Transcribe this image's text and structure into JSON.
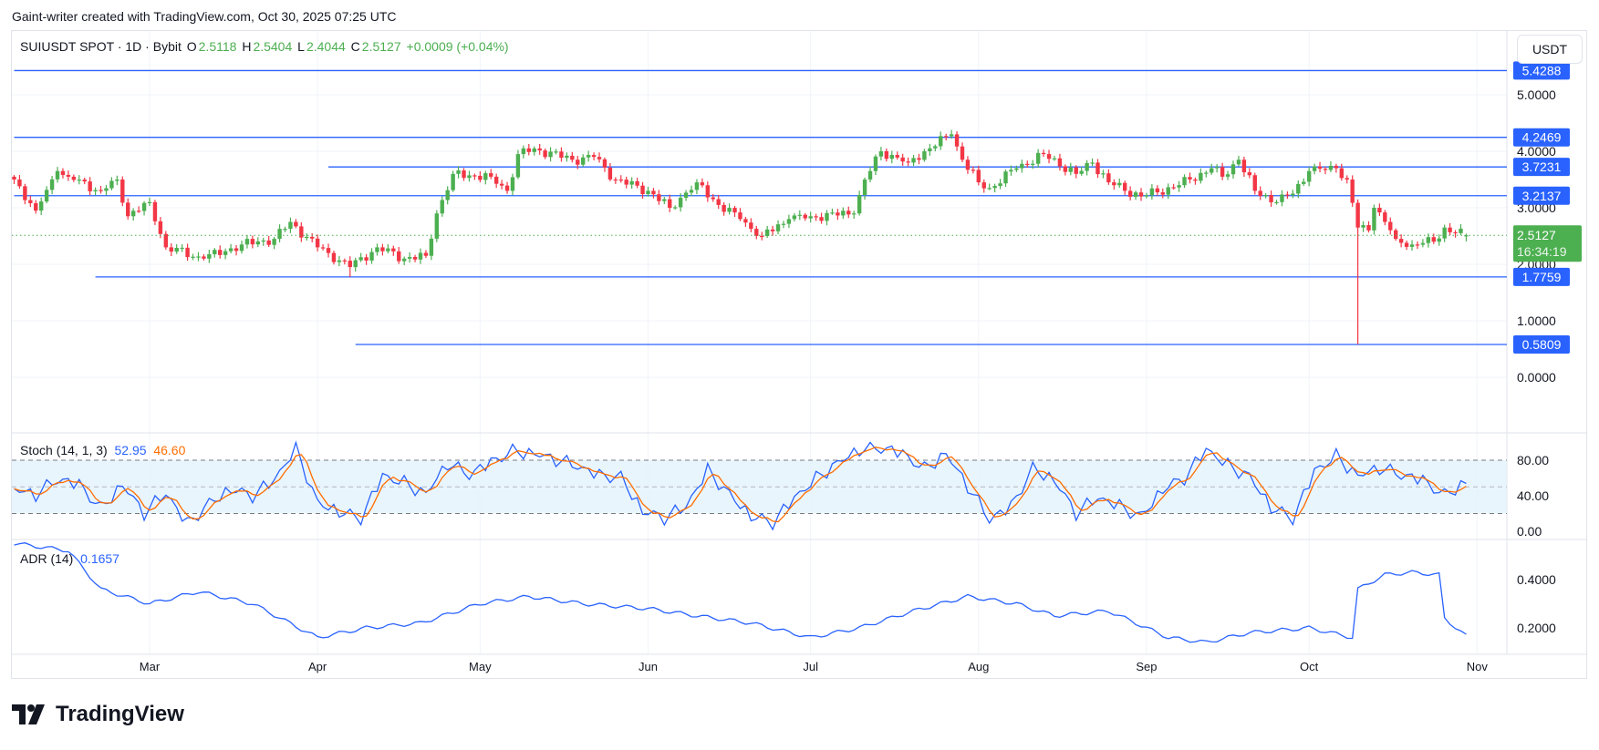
{
  "credit": "Gaint-writer created with TradingView.com, Oct 30, 2025 07:25 UTC",
  "legend": {
    "symbol": "SUIUSDT SPOT · 1D · Bybit",
    "o_label": "O",
    "o": "2.5118",
    "h_label": "H",
    "h": "2.5404",
    "l_label": "L",
    "l": "2.4044",
    "c_label": "C",
    "c": "2.5127",
    "change": "+0.0009 (+0.04%)"
  },
  "currency_button": "USDT",
  "logo_text": "TradingView",
  "colors": {
    "up": "#4caf50",
    "down": "#f23645",
    "line": "#2962ff",
    "stoch_k": "#2962ff",
    "stoch_d": "#ff6d00",
    "band": "#e3f2fd"
  },
  "chart_data": [
    {
      "type": "candlestick",
      "interval": "1D",
      "y_scale": "linear",
      "ylim": [
        0,
        5.6
      ],
      "y_ticks": [
        "5.0000",
        "4.0000",
        "3.0000",
        "2.0000",
        "1.0000",
        "0.0000"
      ],
      "x_ticks": [
        "Mar",
        "Apr",
        "May",
        "Jun",
        "Jul",
        "Aug",
        "Sep",
        "Oct",
        "Nov"
      ],
      "x_range": [
        "2025-02-04",
        "2025-10-30"
      ],
      "grid": true,
      "approx_closes": [
        [
          "2025-02-04",
          3.5
        ],
        [
          "2025-02-08",
          2.95
        ],
        [
          "2025-02-12",
          3.65
        ],
        [
          "2025-02-14",
          3.55
        ],
        [
          "2025-02-20",
          3.3
        ],
        [
          "2025-02-23",
          3.5
        ],
        [
          "2025-02-25",
          2.85
        ],
        [
          "2025-03-01",
          3.1
        ],
        [
          "2025-03-04",
          2.3
        ],
        [
          "2025-03-11",
          2.1
        ],
        [
          "2025-03-18",
          2.35
        ],
        [
          "2025-03-24",
          2.45
        ],
        [
          "2025-03-27",
          2.75
        ],
        [
          "2025-04-01",
          2.3
        ],
        [
          "2025-04-03",
          2.2
        ],
        [
          "2025-04-07",
          1.95
        ],
        [
          "2025-04-12",
          2.3
        ],
        [
          "2025-04-17",
          2.1
        ],
        [
          "2025-04-21",
          2.15
        ],
        [
          "2025-04-23",
          2.9
        ],
        [
          "2025-04-26",
          3.6
        ],
        [
          "2025-05-03",
          3.55
        ],
        [
          "2025-05-06",
          3.3
        ],
        [
          "2025-05-08",
          3.95
        ],
        [
          "2025-05-11",
          4.05
        ],
        [
          "2025-05-18",
          3.85
        ],
        [
          "2025-05-22",
          3.9
        ],
        [
          "2025-05-26",
          3.5
        ],
        [
          "2025-06-01",
          3.3
        ],
        [
          "2025-06-05",
          3.0
        ],
        [
          "2025-06-10",
          3.45
        ],
        [
          "2025-06-14",
          3.05
        ],
        [
          "2025-06-18",
          2.8
        ],
        [
          "2025-06-22",
          2.5
        ],
        [
          "2025-06-27",
          2.8
        ],
        [
          "2025-07-01",
          2.85
        ],
        [
          "2025-07-09",
          2.9
        ],
        [
          "2025-07-11",
          3.5
        ],
        [
          "2025-07-14",
          4.0
        ],
        [
          "2025-07-19",
          3.8
        ],
        [
          "2025-07-22",
          4.0
        ],
        [
          "2025-07-27",
          4.3
        ],
        [
          "2025-07-29",
          3.85
        ],
        [
          "2025-08-01",
          3.45
        ],
        [
          "2025-08-03",
          3.35
        ],
        [
          "2025-08-08",
          3.7
        ],
        [
          "2025-08-13",
          3.95
        ],
        [
          "2025-08-19",
          3.6
        ],
        [
          "2025-08-22",
          3.8
        ],
        [
          "2025-08-25",
          3.45
        ],
        [
          "2025-08-31",
          3.2
        ],
        [
          "2025-09-07",
          3.4
        ],
        [
          "2025-09-13",
          3.7
        ],
        [
          "2025-09-15",
          3.55
        ],
        [
          "2025-09-18",
          3.85
        ],
        [
          "2025-09-21",
          3.3
        ],
        [
          "2025-09-25",
          3.1
        ],
        [
          "2025-09-28",
          3.25
        ],
        [
          "2025-10-01",
          3.65
        ],
        [
          "2025-10-06",
          3.7
        ],
        [
          "2025-10-08",
          3.5
        ],
        [
          "2025-10-10",
          2.65
        ],
        [
          "2025-10-12",
          2.6
        ],
        [
          "2025-10-13",
          3.0
        ],
        [
          "2025-10-15",
          2.75
        ],
        [
          "2025-10-17",
          2.45
        ],
        [
          "2025-10-20",
          2.35
        ],
        [
          "2025-10-24",
          2.4
        ],
        [
          "2025-10-26",
          2.65
        ],
        [
          "2025-10-28",
          2.55
        ],
        [
          "2025-10-30",
          2.5127
        ]
      ],
      "special_lows": [
        [
          "2025-10-10",
          0.5809
        ],
        [
          "2025-04-07",
          1.7759
        ]
      ],
      "last_candle": {
        "open": 2.5118,
        "high": 2.5404,
        "low": 2.4044,
        "close": 2.5127
      },
      "horizontal_lines": [
        {
          "price": 5.4288,
          "label": "5.4288",
          "from": "2025-02-04"
        },
        {
          "price": 4.2469,
          "label": "4.2469",
          "from": "2025-02-04"
        },
        {
          "price": 3.7231,
          "label": "3.7231",
          "from": "2025-04-03"
        },
        {
          "price": 3.2137,
          "label": "3.2137",
          "from": "2025-02-04"
        },
        {
          "price": 1.7759,
          "label": "1.7759",
          "from": "2025-02-19"
        },
        {
          "price": 0.5809,
          "label": "0.5809",
          "from": "2025-04-08"
        }
      ],
      "last_price": {
        "label": "2.5127",
        "countdown": "16:34:19"
      }
    },
    {
      "type": "line",
      "title": "Stoch (14, 1, 3)",
      "k_value": "52.95",
      "d_value": "46.60",
      "ylim": [
        0,
        100
      ],
      "y_ticks": [
        "80.00",
        "40.00",
        "0.00"
      ],
      "bands": [
        20,
        50,
        80
      ],
      "k_every_4_days_from": "2025-02-04",
      "k": [
        45,
        40,
        60,
        55,
        25,
        50,
        20,
        45,
        10,
        30,
        45,
        40,
        60,
        95,
        30,
        20,
        15,
        65,
        55,
        40,
        75,
        65,
        80,
        90,
        85,
        80,
        75,
        65,
        60,
        20,
        15,
        30,
        70,
        40,
        15,
        10,
        40,
        60,
        75,
        90,
        95,
        90,
        70,
        85,
        50,
        15,
        30,
        70,
        55,
        20,
        40,
        30,
        15,
        45,
        60,
        95,
        75,
        60,
        25,
        15,
        70,
        85,
        60,
        70,
        65,
        60,
        40,
        52.95
      ]
    },
    {
      "type": "line",
      "title": "ADR (14)",
      "value": "0.1657",
      "y_ticks": [
        "0.4000",
        "0.2000"
      ],
      "points": [
        [
          "2025-02-04",
          0.55
        ],
        [
          "2025-02-14",
          0.52
        ],
        [
          "2025-02-20",
          0.36
        ],
        [
          "2025-03-01",
          0.3
        ],
        [
          "2025-03-10",
          0.35
        ],
        [
          "2025-03-20",
          0.3
        ],
        [
          "2025-04-01",
          0.16
        ],
        [
          "2025-04-10",
          0.2
        ],
        [
          "2025-04-20",
          0.22
        ],
        [
          "2025-05-01",
          0.3
        ],
        [
          "2025-05-10",
          0.33
        ],
        [
          "2025-05-20",
          0.3
        ],
        [
          "2025-06-01",
          0.28
        ],
        [
          "2025-06-10",
          0.25
        ],
        [
          "2025-06-20",
          0.22
        ],
        [
          "2025-07-01",
          0.16
        ],
        [
          "2025-07-10",
          0.2
        ],
        [
          "2025-07-20",
          0.27
        ],
        [
          "2025-07-30",
          0.33
        ],
        [
          "2025-08-08",
          0.3
        ],
        [
          "2025-08-15",
          0.25
        ],
        [
          "2025-08-25",
          0.27
        ],
        [
          "2025-09-05",
          0.16
        ],
        [
          "2025-09-12",
          0.14
        ],
        [
          "2025-09-20",
          0.18
        ],
        [
          "2025-10-01",
          0.2
        ],
        [
          "2025-10-09",
          0.16
        ],
        [
          "2025-10-10",
          0.36
        ],
        [
          "2025-10-15",
          0.42
        ],
        [
          "2025-10-20",
          0.43
        ],
        [
          "2025-10-25",
          0.42
        ],
        [
          "2025-10-26",
          0.24
        ],
        [
          "2025-10-30",
          0.1657
        ]
      ]
    }
  ]
}
